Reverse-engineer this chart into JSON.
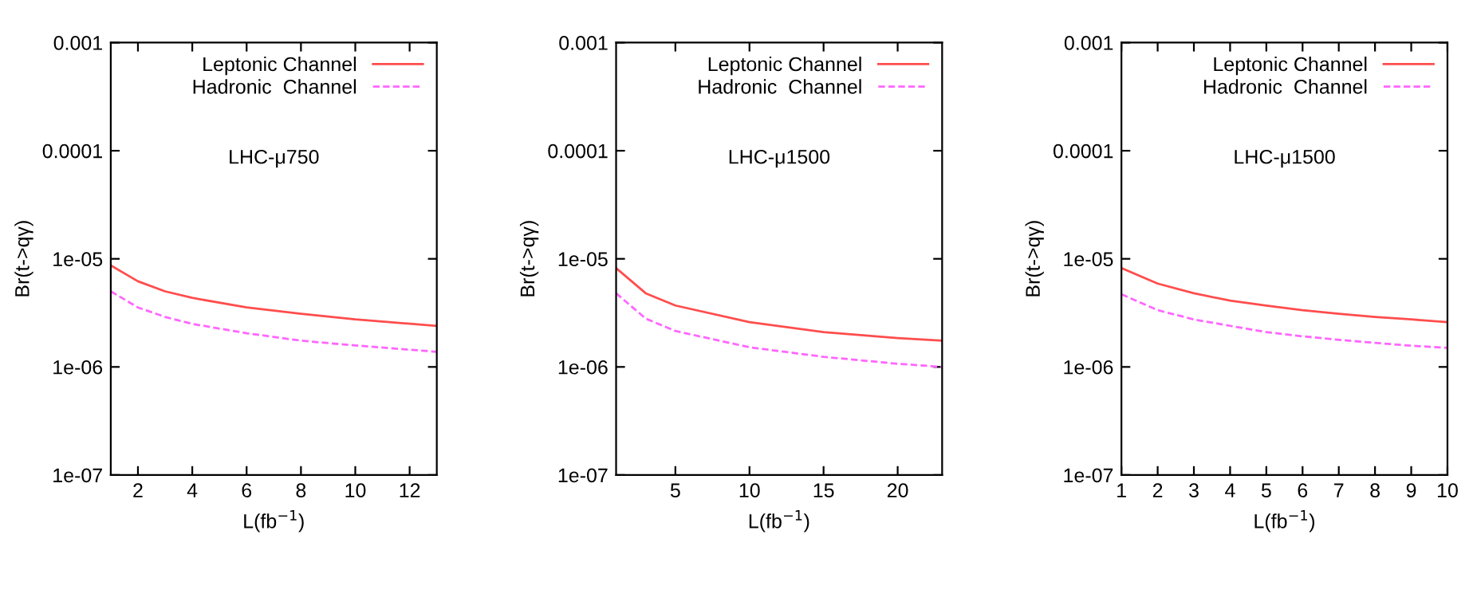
{
  "chart_data": [
    {
      "type": "line",
      "xlabel": "L(fb$^{−1}$)",
      "ylabel": "Br(t->qγ)",
      "annotations": [
        "LHC-μ750"
      ],
      "log": "y",
      "legend": "top right",
      "grid": false,
      "xlim": [
        1,
        13
      ],
      "xticks": [
        2,
        4,
        6,
        8,
        10,
        12
      ],
      "ylim": [
        1e-07,
        0.001
      ],
      "yticks": [
        {
          "value": 1e-07,
          "label": "1e-07"
        },
        {
          "value": 1e-06,
          "label": "1e-06"
        },
        {
          "value": 1e-05,
          "label": "1e-05"
        },
        {
          "value": 0.0001,
          "label": "0.0001"
        },
        {
          "value": 0.001,
          "label": "0.001"
        }
      ],
      "series": [
        {
          "name": "Leptonic Channel",
          "color": "#ff4d4d",
          "line_style": "solid",
          "x": [
            1,
            2,
            3,
            4,
            6,
            8,
            10,
            13
          ],
          "values": [
            8.7e-06,
            6.2e-06,
            5e-06,
            4.35e-06,
            3.55e-06,
            3.1e-06,
            2.75e-06,
            2.4e-06
          ]
        },
        {
          "name": "Hadronic  Channel",
          "color": "#ff66ff",
          "line_style": "dashed",
          "x": [
            1,
            2,
            3,
            4,
            6,
            8,
            10,
            13
          ],
          "values": [
            5e-06,
            3.55e-06,
            2.9e-06,
            2.5e-06,
            2.05e-06,
            1.75e-06,
            1.58e-06,
            1.38e-06
          ]
        }
      ]
    },
    {
      "type": "line",
      "xlabel": "L(fb$^{−1}$)",
      "ylabel": "Br(t->qγ)",
      "annotations": [
        "LHC-μ1500"
      ],
      "log": "y",
      "legend": "top right",
      "grid": false,
      "xlim": [
        1,
        23
      ],
      "xticks": [
        5,
        10,
        15,
        20
      ],
      "ylim": [
        1e-07,
        0.001
      ],
      "yticks": [
        {
          "value": 1e-07,
          "label": "1e-07"
        },
        {
          "value": 1e-06,
          "label": "1e-06"
        },
        {
          "value": 1e-05,
          "label": "1e-05"
        },
        {
          "value": 0.0001,
          "label": "0.0001"
        },
        {
          "value": 0.001,
          "label": "0.001"
        }
      ],
      "series": [
        {
          "name": "Leptonic Channel",
          "color": "#ff4d4d",
          "line_style": "solid",
          "x": [
            1,
            3,
            5,
            10,
            15,
            20,
            23
          ],
          "values": [
            8.2e-06,
            4.8e-06,
            3.7e-06,
            2.6e-06,
            2.1e-06,
            1.85e-06,
            1.75e-06
          ]
        },
        {
          "name": "Hadronic  Channel",
          "color": "#ff66ff",
          "line_style": "dashed",
          "x": [
            1,
            3,
            5,
            10,
            15,
            20,
            23
          ],
          "values": [
            4.8e-06,
            2.8e-06,
            2.15e-06,
            1.52e-06,
            1.24e-06,
            1.07e-06,
            1e-06
          ]
        }
      ]
    },
    {
      "type": "line",
      "xlabel": "L(fb$^{−1}$)",
      "ylabel": "Br(t->qγ)",
      "annotations": [
        "LHC-μ1500"
      ],
      "log": "y",
      "legend": "top right",
      "grid": false,
      "xlim": [
        1,
        10
      ],
      "xticks": [
        1,
        2,
        3,
        4,
        5,
        6,
        7,
        8,
        9,
        10
      ],
      "ylim": [
        1e-07,
        0.001
      ],
      "yticks": [
        {
          "value": 1e-07,
          "label": "1e-07"
        },
        {
          "value": 1e-06,
          "label": "1e-06"
        },
        {
          "value": 1e-05,
          "label": "1e-05"
        },
        {
          "value": 0.0001,
          "label": "0.0001"
        },
        {
          "value": 0.001,
          "label": "0.001"
        }
      ],
      "series": [
        {
          "name": "Leptonic Channel",
          "color": "#ff4d4d",
          "line_style": "solid",
          "x": [
            1,
            2,
            3,
            4,
            5,
            6,
            7,
            8,
            9,
            10
          ],
          "values": [
            8.2e-06,
            5.9e-06,
            4.8e-06,
            4.1e-06,
            3.7e-06,
            3.35e-06,
            3.1e-06,
            2.9e-06,
            2.75e-06,
            2.6e-06
          ]
        },
        {
          "name": "Hadronic  Channel",
          "color": "#ff66ff",
          "line_style": "dashed",
          "x": [
            1,
            2,
            3,
            4,
            5,
            6,
            7,
            8,
            9,
            10
          ],
          "values": [
            4.7e-06,
            3.35e-06,
            2.75e-06,
            2.4e-06,
            2.1e-06,
            1.92e-06,
            1.78e-06,
            1.67e-06,
            1.57e-06,
            1.5e-06
          ]
        }
      ]
    }
  ]
}
